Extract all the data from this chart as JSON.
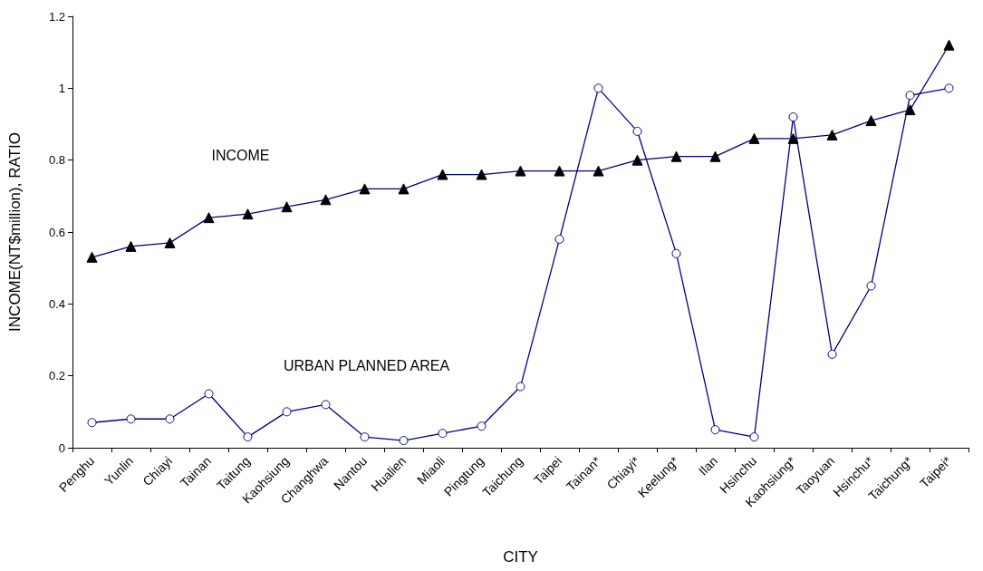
{
  "chart_data": {
    "type": "line",
    "xlabel": "CITY",
    "ylabel": "INCOME(NT$million), RATIO",
    "categories": [
      "Penghu",
      "Yunlin",
      "Chiayi",
      "Tainan",
      "Taitung",
      "Kaohsiung",
      "Changhwa",
      "Nantou",
      "Hualien",
      "Miaoli",
      "Pingtung",
      "Taichung",
      "Taipei",
      "Tainan*",
      "Chiayi*",
      "Keelung*",
      "Ilan",
      "Hsinchu",
      "Kaohsiung*",
      "Taoyuan",
      "Hsinchu*",
      "Taichung*",
      "Taipei*"
    ],
    "series": [
      {
        "name": "INCOME",
        "color": "#000080",
        "marker": "triangle",
        "values": [
          0.53,
          0.56,
          0.57,
          0.64,
          0.65,
          0.67,
          0.69,
          0.72,
          0.72,
          0.76,
          0.76,
          0.77,
          0.77,
          0.77,
          0.8,
          0.81,
          0.81,
          0.86,
          0.86,
          0.87,
          0.91,
          0.94,
          1.12
        ]
      },
      {
        "name": "URBAN PLANNED AREA",
        "color": "#000080",
        "marker": "circle",
        "values": [
          0.07,
          0.08,
          0.08,
          0.15,
          0.03,
          0.1,
          0.12,
          0.03,
          0.02,
          0.04,
          0.06,
          0.17,
          0.58,
          1.0,
          0.88,
          0.54,
          0.05,
          0.03,
          0.92,
          0.26,
          0.45,
          0.98,
          1.0
        ]
      }
    ],
    "ylim": [
      0,
      1.2
    ],
    "yticks": [
      0,
      0.2,
      0.4,
      0.6,
      0.8,
      1,
      1.2
    ],
    "grid": false,
    "legend": false,
    "line_style": "solid"
  }
}
